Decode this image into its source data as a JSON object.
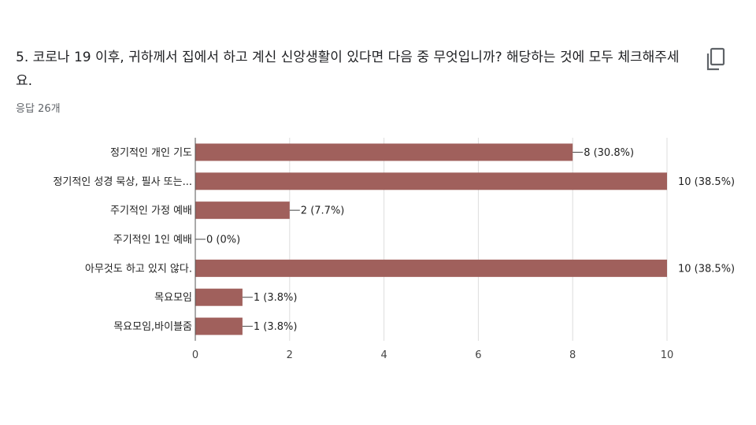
{
  "question": {
    "title": "5. 코로나 19 이후, 귀하께서 집에서 하고 계신 신앙생활이 있다면 다음 중 무엇입니까? 해당하는 것에 모두 체크해주세요.",
    "response_count": "응답 26개"
  },
  "copy_icon": "copy-icon",
  "colors": {
    "bar": "#a0605c",
    "grid": "#dddddd",
    "axis": "#555555"
  },
  "chart_data": {
    "type": "bar",
    "orientation": "horizontal",
    "categories": [
      "정기적인 개인 기도",
      "정기적인 성경 묵상, 필사 또는...",
      "주기적인 가정 예배",
      "주기적인 1인 예배",
      "아무것도 하고 있지 않다.",
      "목요모임",
      "목요모임,바이블줌"
    ],
    "values": [
      8,
      10,
      2,
      0,
      10,
      1,
      1
    ],
    "data_labels": [
      "8 (30.8%)",
      "10 (38.5%)",
      "2 (7.7%)",
      "0 (0%)",
      "10 (38.5%)",
      "1 (3.8%)",
      "1 (3.8%)"
    ],
    "xticks": [
      "0",
      "2",
      "4",
      "6",
      "8",
      "10"
    ],
    "xlim": [
      0,
      10
    ],
    "grid": true,
    "legend": "none"
  }
}
